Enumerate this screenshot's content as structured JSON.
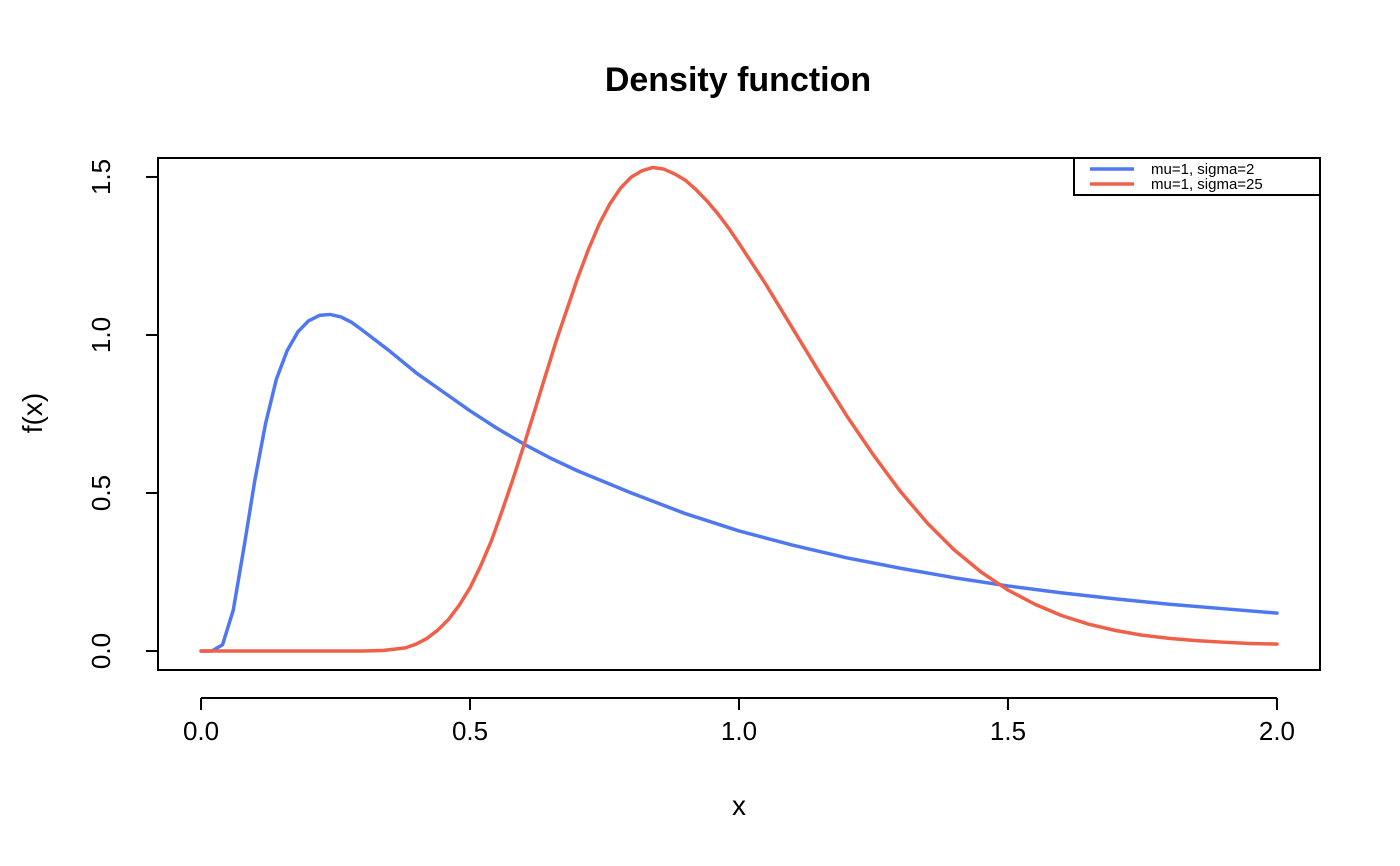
{
  "chart_data": {
    "type": "line",
    "title": "Density function",
    "xlabel": "x",
    "ylabel": "f(x)",
    "xlim": [
      -0.08,
      2.08
    ],
    "ylim": [
      -0.06,
      1.56
    ],
    "x_ticks": [
      0.0,
      0.5,
      1.0,
      1.5,
      2.0
    ],
    "x_tick_labels": [
      "0.0",
      "0.5",
      "1.0",
      "1.5",
      "2.0"
    ],
    "y_ticks": [
      0.0,
      0.5,
      1.0,
      1.5
    ],
    "y_tick_labels": [
      "0.0",
      "0.5",
      "1.0",
      "1.5"
    ],
    "grid": false,
    "legend_position": "top-right",
    "series": [
      {
        "name": "mu=1, sigma=2",
        "color": "#4F78F0",
        "x": [
          0.0,
          0.02,
          0.04,
          0.06,
          0.08,
          0.1,
          0.12,
          0.14,
          0.16,
          0.18,
          0.2,
          0.22,
          0.24,
          0.26,
          0.28,
          0.3,
          0.35,
          0.4,
          0.45,
          0.5,
          0.55,
          0.6,
          0.65,
          0.7,
          0.8,
          0.9,
          1.0,
          1.1,
          1.2,
          1.3,
          1.4,
          1.5,
          1.6,
          1.7,
          1.8,
          1.9,
          2.0
        ],
        "y": [
          0.0,
          0.0,
          0.02,
          0.13,
          0.33,
          0.54,
          0.72,
          0.86,
          0.95,
          1.01,
          1.045,
          1.062,
          1.065,
          1.057,
          1.04,
          1.015,
          0.95,
          0.88,
          0.82,
          0.76,
          0.705,
          0.655,
          0.61,
          0.57,
          0.5,
          0.435,
          0.38,
          0.335,
          0.295,
          0.262,
          0.232,
          0.206,
          0.184,
          0.165,
          0.148,
          0.134,
          0.12
        ]
      },
      {
        "name": "mu=1, sigma=25",
        "color": "#F06048",
        "x": [
          0.0,
          0.2,
          0.3,
          0.34,
          0.38,
          0.4,
          0.42,
          0.44,
          0.46,
          0.48,
          0.5,
          0.52,
          0.54,
          0.56,
          0.58,
          0.6,
          0.62,
          0.64,
          0.66,
          0.68,
          0.7,
          0.72,
          0.74,
          0.76,
          0.78,
          0.8,
          0.82,
          0.84,
          0.86,
          0.88,
          0.9,
          0.92,
          0.94,
          0.96,
          0.98,
          1.0,
          1.05,
          1.1,
          1.15,
          1.2,
          1.25,
          1.3,
          1.35,
          1.4,
          1.45,
          1.5,
          1.55,
          1.6,
          1.65,
          1.7,
          1.75,
          1.8,
          1.85,
          1.9,
          1.95,
          2.0
        ],
        "y": [
          0.0,
          0.0,
          0.0,
          0.002,
          0.01,
          0.022,
          0.04,
          0.066,
          0.1,
          0.145,
          0.2,
          0.27,
          0.35,
          0.445,
          0.545,
          0.65,
          0.76,
          0.87,
          0.98,
          1.08,
          1.18,
          1.27,
          1.35,
          1.415,
          1.465,
          1.5,
          1.52,
          1.53,
          1.525,
          1.51,
          1.49,
          1.46,
          1.425,
          1.385,
          1.34,
          1.29,
          1.16,
          1.02,
          0.88,
          0.745,
          0.62,
          0.505,
          0.405,
          0.32,
          0.25,
          0.193,
          0.148,
          0.112,
          0.085,
          0.065,
          0.05,
          0.04,
          0.033,
          0.028,
          0.024,
          0.022
        ]
      }
    ]
  }
}
